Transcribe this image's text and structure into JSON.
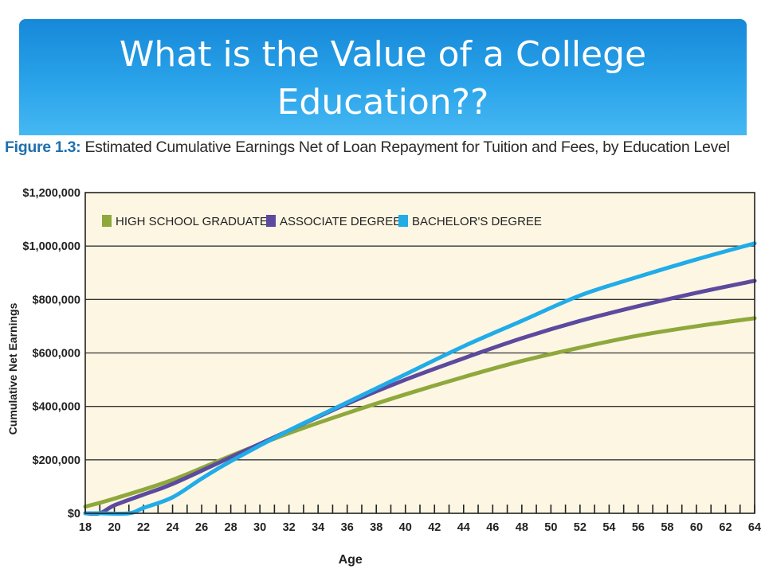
{
  "slide": {
    "title": "What is the Value of a College Education??"
  },
  "figure": {
    "label": "Figure 1.3:",
    "caption": "Estimated Cumulative Earnings Net of Loan Repayment for Tuition and Fees, by Education Level"
  },
  "colors": {
    "banner": "#1f95e0",
    "plot_background": "#fdf6e3",
    "high_school": "#8fa83c",
    "associate": "#5b4a9e",
    "bachelor": "#21ace8"
  },
  "chart_data": {
    "type": "line",
    "title": "",
    "xlabel": "Age",
    "ylabel": "Cumulative Net Earnings",
    "xlim": [
      18,
      64
    ],
    "ylim": [
      0,
      1200000
    ],
    "x_ticks": [
      18,
      20,
      22,
      24,
      26,
      28,
      30,
      32,
      34,
      36,
      38,
      40,
      42,
      44,
      46,
      48,
      50,
      52,
      54,
      56,
      58,
      60,
      62,
      64
    ],
    "y_ticks": [
      {
        "value": 0,
        "label": "$0"
      },
      {
        "value": 200000,
        "label": "$200,000"
      },
      {
        "value": 400000,
        "label": "$400,000"
      },
      {
        "value": 600000,
        "label": "$600,000"
      },
      {
        "value": 800000,
        "label": "$800,000"
      },
      {
        "value": 1000000,
        "label": "$1,000,000"
      },
      {
        "value": 1200000,
        "label": "$1,200,000"
      }
    ],
    "grid": "horizontal",
    "legend_position": "top-left",
    "series": [
      {
        "name": "HIGH SCHOOL GRADUATE",
        "color": "#8fa83c",
        "x": [
          18,
          20,
          24,
          28,
          32,
          36,
          40,
          44,
          48,
          52,
          56,
          60,
          64
        ],
        "y": [
          25000,
          55000,
          125000,
          215000,
          300000,
          375000,
          445000,
          510000,
          570000,
          620000,
          665000,
          700000,
          730000
        ]
      },
      {
        "name": "ASSOCIATE DEGREE",
        "color": "#5b4a9e",
        "x": [
          18,
          19,
          20,
          22,
          24,
          28,
          32,
          36,
          40,
          44,
          48,
          52,
          56,
          60,
          64
        ],
        "y": [
          0,
          0,
          30000,
          70000,
          110000,
          210000,
          310000,
          410000,
          500000,
          580000,
          655000,
          720000,
          775000,
          825000,
          870000
        ]
      },
      {
        "name": "BACHELOR'S DEGREE",
        "color": "#21ace8",
        "x": [
          18,
          19,
          21,
          22,
          24,
          26,
          28,
          32,
          36,
          40,
          44,
          48,
          52,
          56,
          60,
          64
        ],
        "y": [
          0,
          0,
          0,
          20000,
          60000,
          130000,
          195000,
          310000,
          415000,
          520000,
          625000,
          720000,
          815000,
          885000,
          950000,
          1010000
        ]
      }
    ]
  }
}
